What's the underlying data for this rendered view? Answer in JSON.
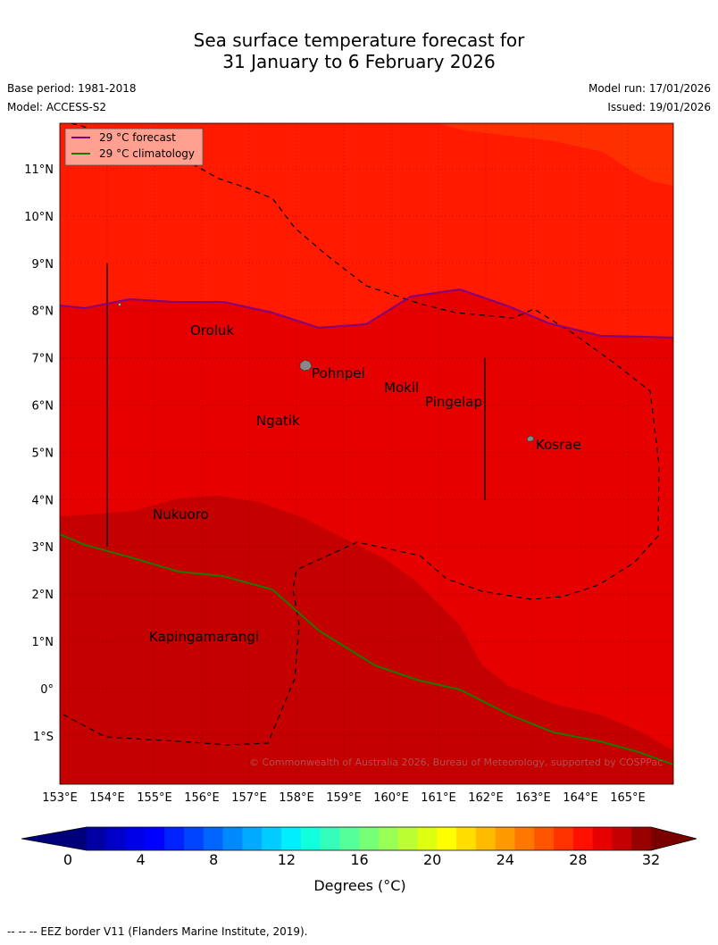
{
  "header": {
    "title_line1": "Sea surface temperature forecast for",
    "title_line2": "31 January to 6 February 2026",
    "base_period": "Base period: 1981-2018",
    "model": "Model: ACCESS-S2",
    "model_run": "Model run: 17/01/2026",
    "issued": "Issued: 19/01/2026"
  },
  "map": {
    "lat_labels": [
      "11°N",
      "10°N",
      "9°N",
      "8°N",
      "7°N",
      "6°N",
      "5°N",
      "4°N",
      "3°N",
      "2°N",
      "1°N",
      "0°",
      "1°S"
    ],
    "lon_labels": [
      "153°E",
      "154°E",
      "155°E",
      "156°E",
      "157°E",
      "158°E",
      "159°E",
      "160°E",
      "161°E",
      "162°E",
      "163°E",
      "164°E",
      "165°E"
    ],
    "places": [
      "Oroluk",
      "Pohnpei",
      "Mokil",
      "Pingelap",
      "Ngatik",
      "Kosrae",
      "Nukuoro",
      "Kapingamarangi"
    ],
    "legend": {
      "forecast": "29 °C  forecast",
      "climatology": "29 °C  climatology",
      "forecast_color": "#800080",
      "climatology_color": "#1a7a00"
    },
    "copyright": "© Commonwealth of Australia 2026, Bureau of Meteorology, supported by COSPPac",
    "fill_colors": {
      "lt29": "#ff3000",
      "29_30": "#ff1a00",
      "30_31": "#e60000",
      "31_32": "#c40000"
    }
  },
  "colorbar": {
    "tick_labels": [
      "0",
      "4",
      "8",
      "12",
      "16",
      "20",
      "24",
      "28",
      "32"
    ],
    "label": "Degrees (°C)",
    "colors": [
      "#0000a6",
      "#0000c8",
      "#0000e6",
      "#0000ff",
      "#0022ff",
      "#0044ff",
      "#0066ff",
      "#0088ff",
      "#00aaff",
      "#00ccff",
      "#00eeff",
      "#11ffdd",
      "#33ffbb",
      "#55ff99",
      "#77ff77",
      "#99ff55",
      "#bbff33",
      "#ddff11",
      "#ffff00",
      "#ffdd00",
      "#ffbb00",
      "#ff9900",
      "#ff7700",
      "#ff5500",
      "#ff3300",
      "#ff1100",
      "#e60000",
      "#c40000",
      "#990000"
    ],
    "under_color": "#00007a",
    "over_color": "#7a0000"
  },
  "footer": {
    "text": "--  --  -- EEZ border V11 (Flanders Marine Institute, 2019)."
  }
}
